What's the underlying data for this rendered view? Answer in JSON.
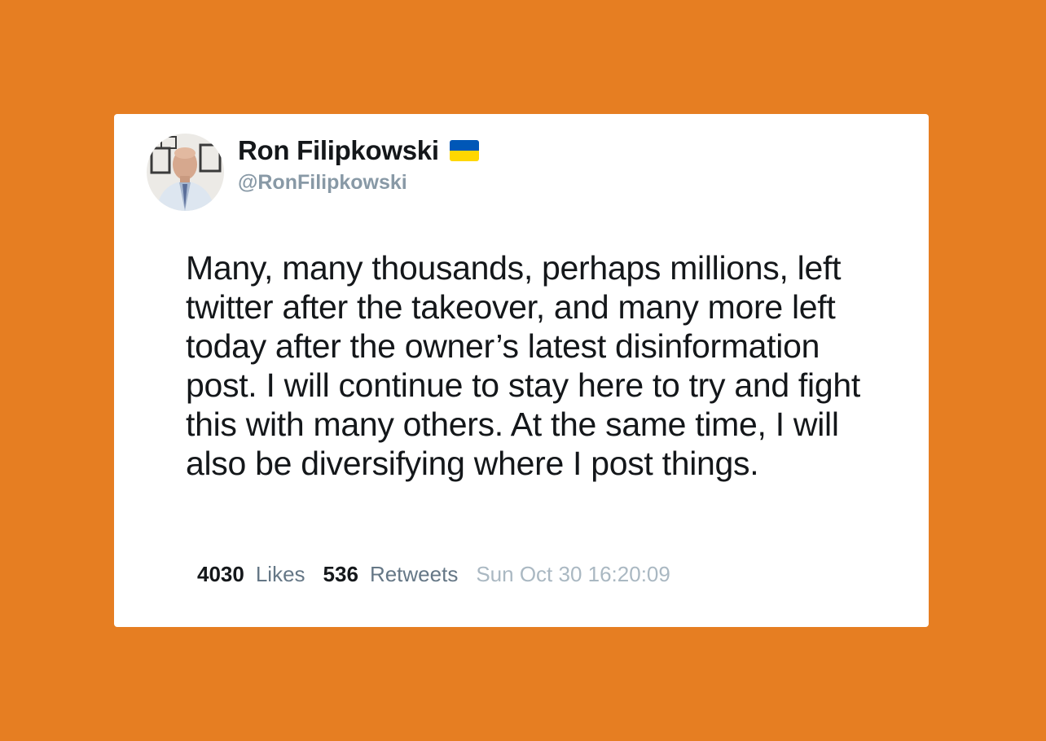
{
  "author": {
    "display_name": "Ron Filipkowski",
    "handle": "@RonFilipkowski",
    "flag_icon": "ukraine-flag-icon",
    "flag_colors": [
      "#0057B7",
      "#FFD700"
    ]
  },
  "tweet": {
    "text": "Many, many thousands, perhaps millions, left twitter after the takeover, and many more left today after the owner’s latest disinformation post. I will continue to stay here to try and fight this with many others. At the same time, I will also be diversifying where I post things."
  },
  "stats": {
    "likes_count": "4030",
    "likes_label": "Likes",
    "retweets_count": "536",
    "retweets_label": "Retweets",
    "timestamp": "Sun Oct 30 16:20:09"
  },
  "colors": {
    "background": "#E67E22",
    "card": "#FFFFFF",
    "handle": "#8899A6",
    "timestamp": "#AAB8C2"
  }
}
